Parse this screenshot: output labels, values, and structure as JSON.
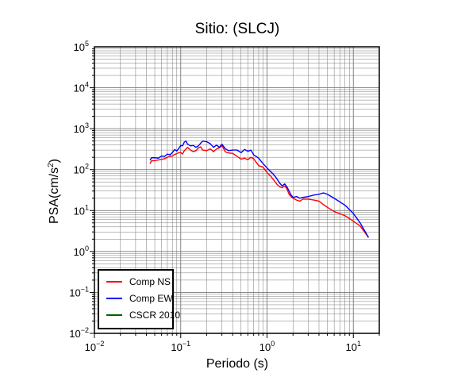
{
  "chart_data": {
    "type": "line",
    "title": "Sitio:  (SLCJ)",
    "xlabel": "Periodo (s)",
    "ylabel_base": "PSA(cm/s",
    "ylabel_exp": "2",
    "ylabel_close": ")",
    "x_scale": "log",
    "y_scale": "log",
    "xlim": [
      0.01,
      20
    ],
    "ylim": [
      0.01,
      100000
    ],
    "grid": true,
    "legend_position": "bottom-left",
    "x_ticks": [
      {
        "base": "10",
        "exp": "−2",
        "value": 0.01
      },
      {
        "base": "10",
        "exp": "−1",
        "value": 0.1
      },
      {
        "base": "10",
        "exp": "0",
        "value": 1
      },
      {
        "base": "10",
        "exp": "1",
        "value": 10
      }
    ],
    "y_ticks": [
      {
        "base": "10",
        "exp": "−2",
        "value": 0.01
      },
      {
        "base": "10",
        "exp": "−1",
        "value": 0.1
      },
      {
        "base": "10",
        "exp": "0",
        "value": 1
      },
      {
        "base": "10",
        "exp": "1",
        "value": 10
      },
      {
        "base": "10",
        "exp": "2",
        "value": 100
      },
      {
        "base": "10",
        "exp": "3",
        "value": 1000
      },
      {
        "base": "10",
        "exp": "4",
        "value": 10000
      },
      {
        "base": "10",
        "exp": "5",
        "value": 100000
      }
    ],
    "series": [
      {
        "name": "Comp NS",
        "color": "#ff0000",
        "points": [
          [
            0.044,
            140
          ],
          [
            0.046,
            165
          ],
          [
            0.05,
            165
          ],
          [
            0.055,
            172
          ],
          [
            0.06,
            178
          ],
          [
            0.065,
            185
          ],
          [
            0.07,
            200
          ],
          [
            0.075,
            210
          ],
          [
            0.08,
            215
          ],
          [
            0.085,
            235
          ],
          [
            0.09,
            245
          ],
          [
            0.095,
            260
          ],
          [
            0.1,
            260
          ],
          [
            0.105,
            240
          ],
          [
            0.11,
            290
          ],
          [
            0.12,
            350
          ],
          [
            0.13,
            300
          ],
          [
            0.14,
            275
          ],
          [
            0.15,
            290
          ],
          [
            0.16,
            340
          ],
          [
            0.17,
            360
          ],
          [
            0.18,
            300
          ],
          [
            0.2,
            290
          ],
          [
            0.22,
            320
          ],
          [
            0.24,
            275
          ],
          [
            0.26,
            320
          ],
          [
            0.28,
            340
          ],
          [
            0.3,
            385
          ],
          [
            0.33,
            270
          ],
          [
            0.36,
            255
          ],
          [
            0.4,
            250
          ],
          [
            0.45,
            210
          ],
          [
            0.5,
            180
          ],
          [
            0.55,
            190
          ],
          [
            0.6,
            175
          ],
          [
            0.65,
            200
          ],
          [
            0.7,
            185
          ],
          [
            0.8,
            125
          ],
          [
            0.9,
            115
          ],
          [
            1.0,
            85
          ],
          [
            1.1,
            70
          ],
          [
            1.2,
            55
          ],
          [
            1.3,
            44
          ],
          [
            1.4,
            38
          ],
          [
            1.5,
            36
          ],
          [
            1.6,
            40
          ],
          [
            1.7,
            34
          ],
          [
            1.8,
            25
          ],
          [
            1.9,
            22
          ],
          [
            2.0,
            20
          ],
          [
            2.2,
            18
          ],
          [
            2.4,
            17
          ],
          [
            2.6,
            19
          ],
          [
            3.0,
            19
          ],
          [
            3.5,
            18
          ],
          [
            4.0,
            17
          ],
          [
            4.5,
            14
          ],
          [
            5.0,
            12
          ],
          [
            6.0,
            9.5
          ],
          [
            8.0,
            7.5
          ],
          [
            10.0,
            5.5
          ],
          [
            12.0,
            4.2
          ],
          [
            15.0,
            2.2
          ]
        ]
      },
      {
        "name": "Comp EW",
        "color": "#0000ff",
        "points": [
          [
            0.044,
            170
          ],
          [
            0.046,
            195
          ],
          [
            0.05,
            195
          ],
          [
            0.055,
            190
          ],
          [
            0.06,
            215
          ],
          [
            0.065,
            210
          ],
          [
            0.07,
            240
          ],
          [
            0.075,
            230
          ],
          [
            0.08,
            260
          ],
          [
            0.085,
            310
          ],
          [
            0.09,
            285
          ],
          [
            0.095,
            330
          ],
          [
            0.1,
            390
          ],
          [
            0.105,
            380
          ],
          [
            0.11,
            470
          ],
          [
            0.115,
            500
          ],
          [
            0.12,
            420
          ],
          [
            0.13,
            380
          ],
          [
            0.14,
            390
          ],
          [
            0.15,
            350
          ],
          [
            0.16,
            380
          ],
          [
            0.17,
            440
          ],
          [
            0.18,
            500
          ],
          [
            0.2,
            480
          ],
          [
            0.22,
            430
          ],
          [
            0.24,
            350
          ],
          [
            0.26,
            400
          ],
          [
            0.28,
            350
          ],
          [
            0.3,
            420
          ],
          [
            0.33,
            320
          ],
          [
            0.36,
            290
          ],
          [
            0.4,
            300
          ],
          [
            0.45,
            300
          ],
          [
            0.5,
            260
          ],
          [
            0.55,
            310
          ],
          [
            0.6,
            280
          ],
          [
            0.65,
            300
          ],
          [
            0.7,
            230
          ],
          [
            0.8,
            190
          ],
          [
            0.9,
            140
          ],
          [
            1.0,
            110
          ],
          [
            1.1,
            90
          ],
          [
            1.2,
            75
          ],
          [
            1.3,
            60
          ],
          [
            1.4,
            47
          ],
          [
            1.5,
            40
          ],
          [
            1.6,
            45
          ],
          [
            1.7,
            38
          ],
          [
            1.8,
            30
          ],
          [
            1.9,
            24
          ],
          [
            2.0,
            21
          ],
          [
            2.2,
            22
          ],
          [
            2.4,
            20
          ],
          [
            2.6,
            21
          ],
          [
            3.0,
            22
          ],
          [
            3.5,
            24
          ],
          [
            4.0,
            25
          ],
          [
            4.5,
            27
          ],
          [
            5.0,
            25
          ],
          [
            6.0,
            20
          ],
          [
            8.0,
            13.5
          ],
          [
            10.0,
            8.5
          ],
          [
            12.0,
            5
          ],
          [
            15.0,
            2.2
          ]
        ]
      },
      {
        "name": "CSCR 2010",
        "color": "#006400",
        "points": []
      }
    ]
  }
}
